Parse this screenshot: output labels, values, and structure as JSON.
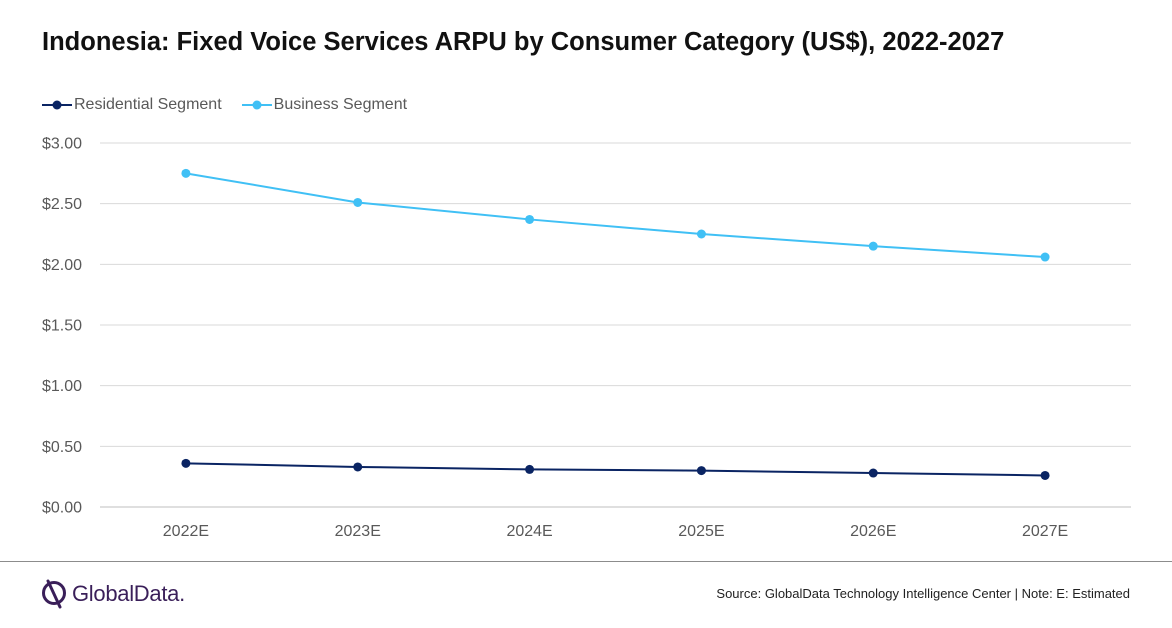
{
  "title": "Indonesia: Fixed Voice Services ARPU by Consumer Category (US$), 2022-2027",
  "logo_text": "GlobalData.",
  "source": "Source:  GlobalData Technology Intelligence Center | Note:  E: Estimated",
  "colors": {
    "residential": "#0a2463",
    "business": "#40c0f5",
    "grid": "#d9d9d9",
    "axis_text": "#595959",
    "brand": "#3a1f59"
  },
  "chart_data": {
    "type": "line",
    "categories": [
      "2022E",
      "2023E",
      "2024E",
      "2025E",
      "2026E",
      "2027E"
    ],
    "series": [
      {
        "name": "Residential Segment",
        "values": [
          0.36,
          0.33,
          0.31,
          0.3,
          0.28,
          0.26
        ]
      },
      {
        "name": "Business Segment",
        "values": [
          2.75,
          2.51,
          2.37,
          2.25,
          2.15,
          2.06
        ]
      }
    ],
    "ylim": [
      0,
      3
    ],
    "yticks": [
      "$0.00",
      "$0.50",
      "$1.00",
      "$1.50",
      "$2.00",
      "$2.50",
      "$3.00"
    ],
    "ytick_values": [
      0,
      0.5,
      1,
      1.5,
      2,
      2.5,
      3
    ],
    "grid": true,
    "legend_position": "top-left"
  }
}
